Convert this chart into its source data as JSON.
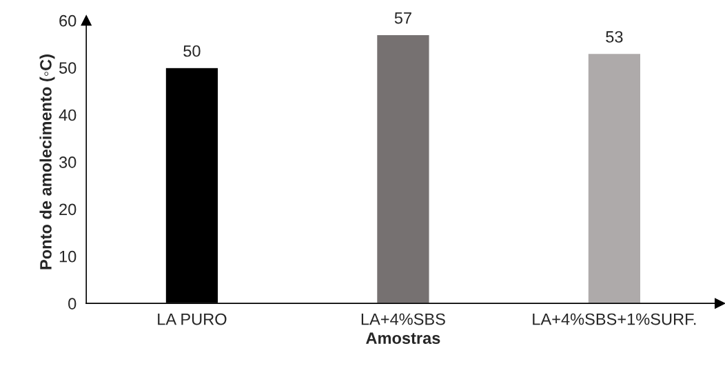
{
  "chart_data": {
    "type": "bar",
    "xlabel": "Amostras",
    "ylabel": "Ponto de amolecimento (◦C)",
    "categories": [
      "LA PURO",
      "LA+4%SBS",
      "LA+4%SBS+1%SURF."
    ],
    "values": [
      50,
      57,
      53
    ],
    "colors": [
      "#000000",
      "#767171",
      "#aeaaaa"
    ],
    "ylim": [
      0,
      60
    ],
    "yticks": [
      0,
      10,
      20,
      30,
      40,
      50,
      60
    ],
    "data_labels": true,
    "grid": false,
    "legend": false
  }
}
